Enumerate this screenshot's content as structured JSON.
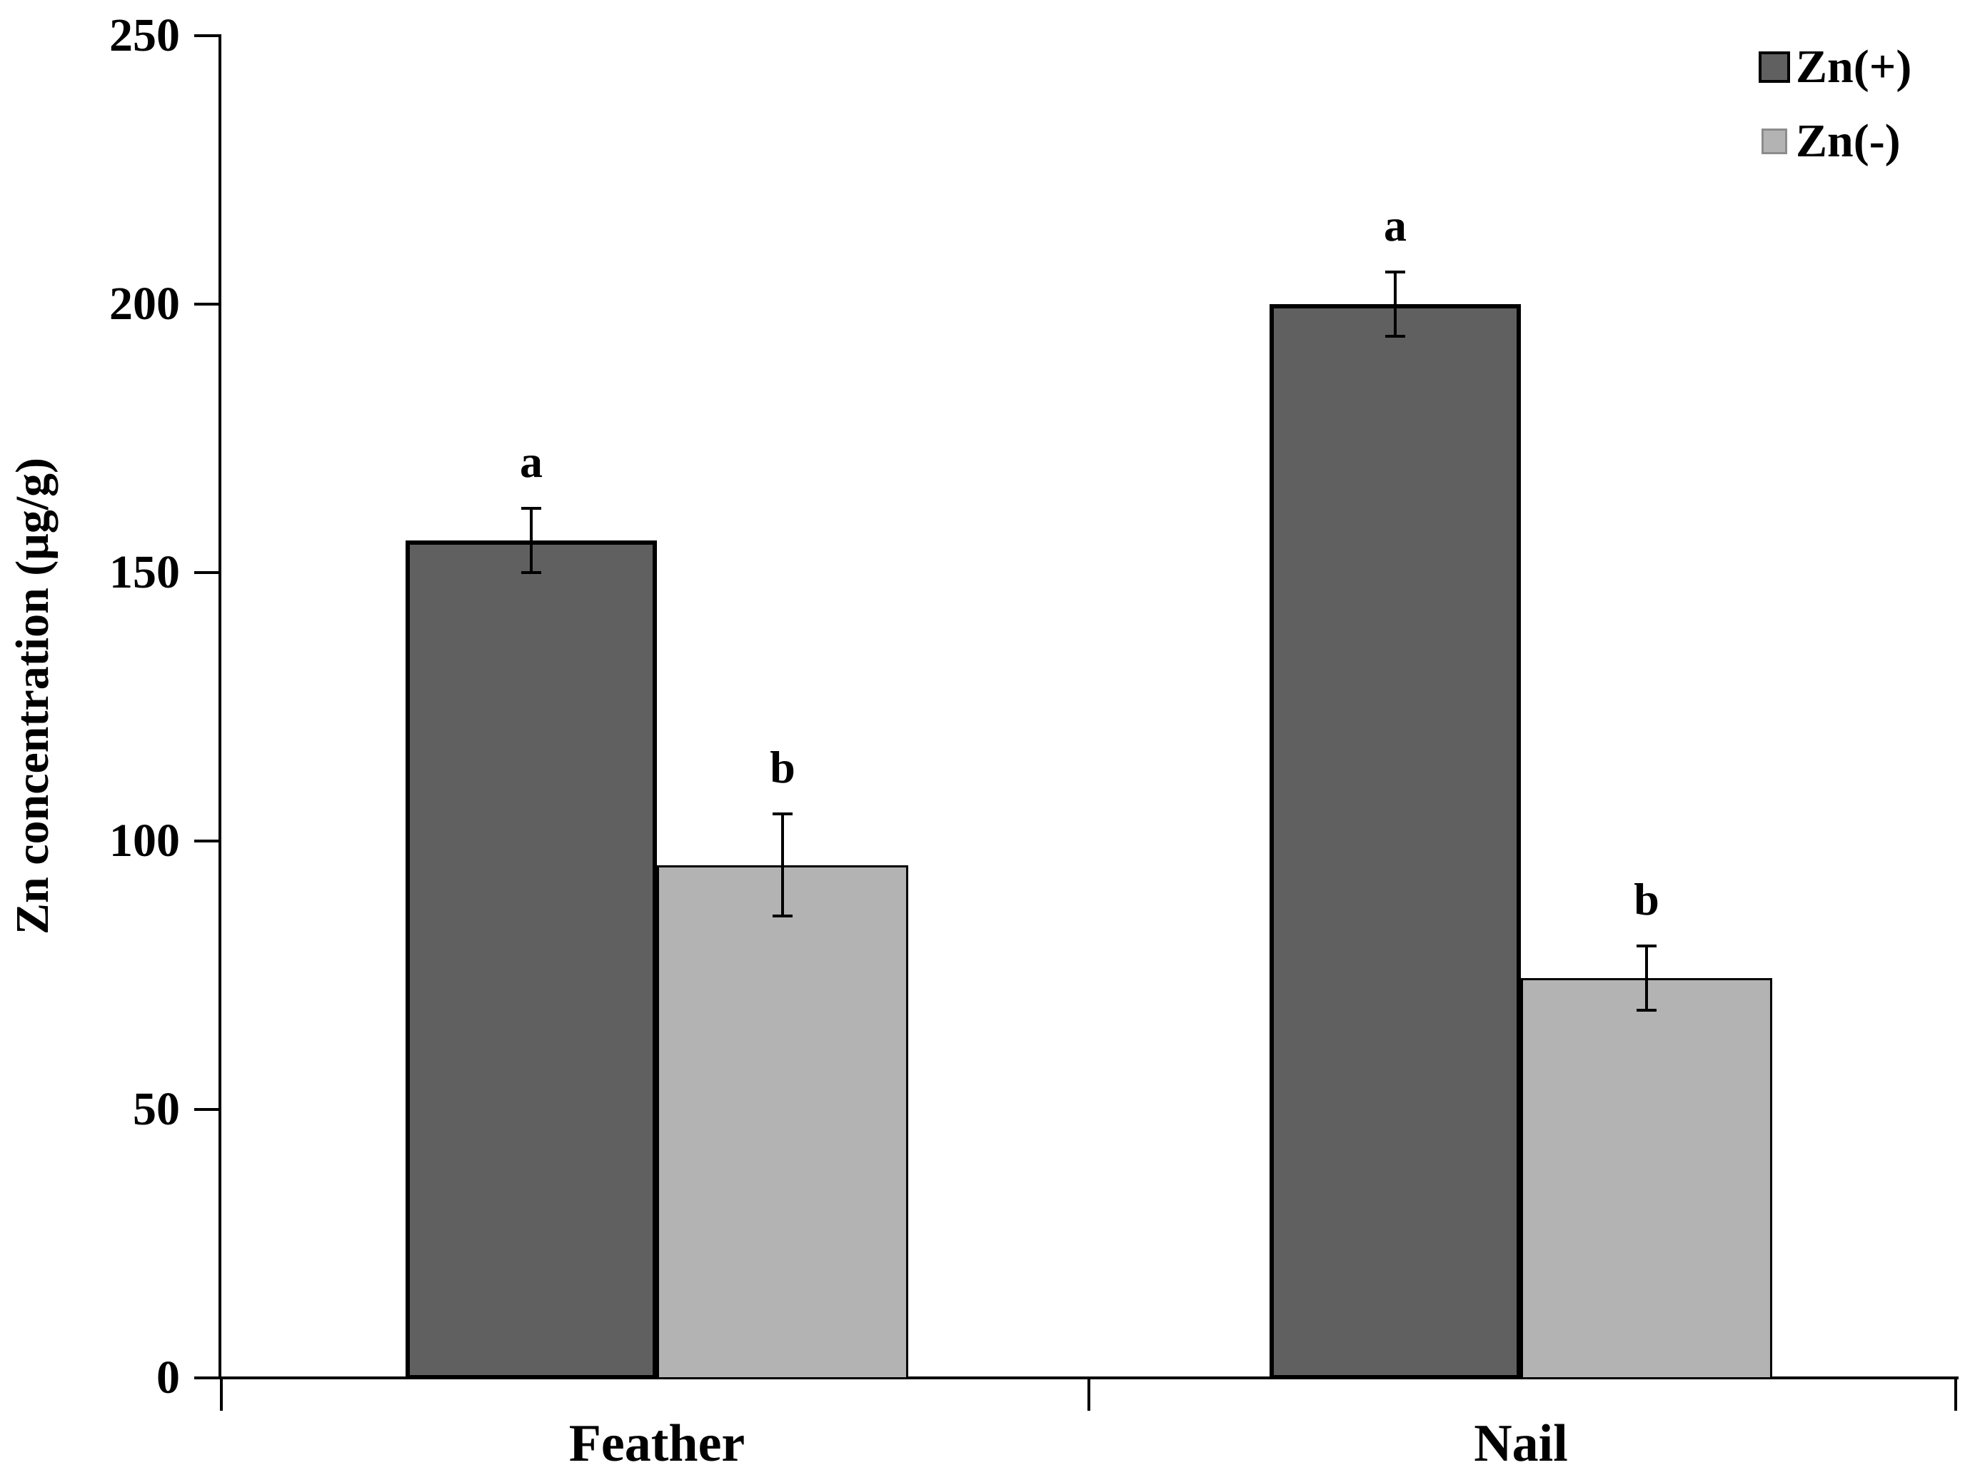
{
  "chart_data": {
    "type": "bar",
    "title": "",
    "xlabel": "",
    "ylabel": "Zn concentration (μg/g)",
    "categories": [
      "Feather",
      "Nail"
    ],
    "series": [
      {
        "name": "Zn(+)",
        "color": "#606060",
        "border_color": "#000000",
        "values": [
          156,
          200
        ],
        "errors": [
          6,
          6
        ],
        "sig_letters": [
          "a",
          "a"
        ]
      },
      {
        "name": "Zn(-)",
        "color": "#b3b3b3",
        "border_color": "#000000",
        "values": [
          95.5,
          74.5
        ],
        "errors": [
          9.5,
          6
        ],
        "sig_letters": [
          "b",
          "b"
        ]
      }
    ],
    "ylim": [
      0,
      250
    ],
    "yticks": [
      0,
      50,
      100,
      150,
      200,
      250
    ],
    "legend_position": "top-right",
    "grid": false,
    "error_bars": true
  },
  "colors": {
    "background": "#ffffff",
    "axis": "#000000",
    "text": "#000000"
  }
}
